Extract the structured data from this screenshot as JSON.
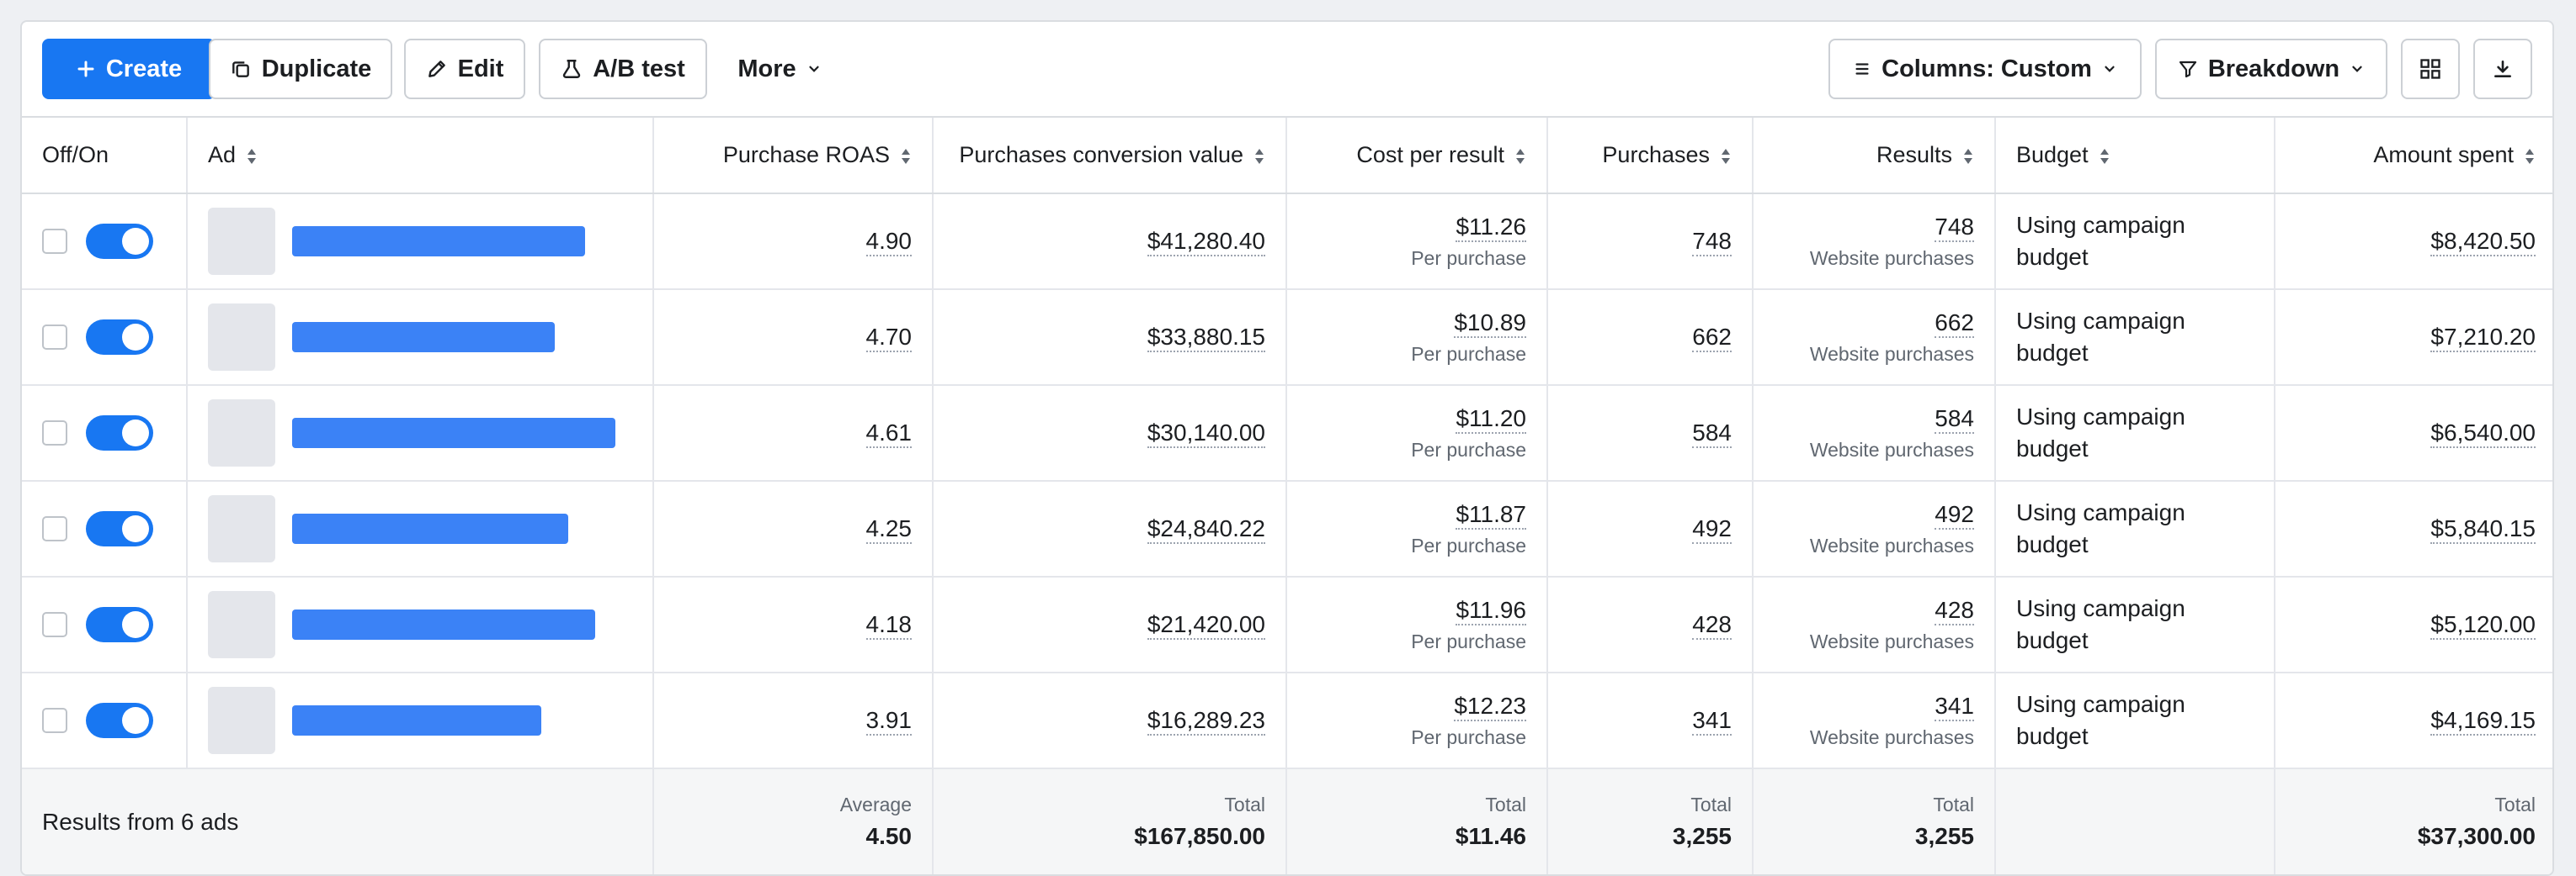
{
  "toolbar": {
    "create": "Create",
    "duplicate": "Duplicate",
    "edit": "Edit",
    "ab_test": "A/B test",
    "more": "More",
    "columns": "Columns: Custom",
    "breakdown": "Breakdown"
  },
  "columns": {
    "offon": "Off/On",
    "ad": "Ad",
    "roas": "Purchase ROAS",
    "conv_value": "Purchases conversion value",
    "cpr": "Cost per result",
    "purchases": "Purchases",
    "results": "Results",
    "budget": "Budget",
    "spent": "Amount spent"
  },
  "rows": [
    {
      "on": true,
      "roas": "4.90",
      "conv_value": "$41,280.40",
      "cpr": "$11.26",
      "cpr_sub": "Per purchase",
      "purchases": "748",
      "results": "748",
      "results_sub": "Website purchases",
      "budget": "Using campaign budget",
      "spent": "$8,420.50"
    },
    {
      "on": true,
      "roas": "4.70",
      "conv_value": "$33,880.15",
      "cpr": "$10.89",
      "cpr_sub": "Per purchase",
      "purchases": "662",
      "results": "662",
      "results_sub": "Website purchases",
      "budget": "Using campaign budget",
      "spent": "$7,210.20"
    },
    {
      "on": true,
      "roas": "4.61",
      "conv_value": "$30,140.00",
      "cpr": "$11.20",
      "cpr_sub": "Per purchase",
      "purchases": "584",
      "results": "584",
      "results_sub": "Website purchases",
      "budget": "Using campaign budget",
      "spent": "$6,540.00"
    },
    {
      "on": true,
      "roas": "4.25",
      "conv_value": "$24,840.22",
      "cpr": "$11.87",
      "cpr_sub": "Per purchase",
      "purchases": "492",
      "results": "492",
      "results_sub": "Website purchases",
      "budget": "Using campaign budget",
      "spent": "$5,840.15"
    },
    {
      "on": true,
      "roas": "4.18",
      "conv_value": "$21,420.00",
      "cpr": "$11.96",
      "cpr_sub": "Per purchase",
      "purchases": "428",
      "results": "428",
      "results_sub": "Website purchases",
      "budget": "Using campaign budget",
      "spent": "$5,120.00"
    },
    {
      "on": true,
      "roas": "3.91",
      "conv_value": "$16,289.23",
      "cpr": "$12.23",
      "cpr_sub": "Per purchase",
      "purchases": "341",
      "results": "341",
      "results_sub": "Website purchases",
      "budget": "Using campaign budget",
      "spent": "$4,169.15"
    }
  ],
  "footer": {
    "summary": "Results from 6 ads",
    "roas_label": "Average",
    "roas": "4.50",
    "conv_label": "Total",
    "conv_value": "$167,850.00",
    "cpr_label": "Total",
    "cpr": "$11.46",
    "purchases_label": "Total",
    "purchases": "3,255",
    "results_label": "Total",
    "results": "3,255",
    "spent_label": "Total",
    "spent": "$37,300.00"
  },
  "colors": {
    "accent": "#1877f2",
    "name_bar": "#3b82f6"
  }
}
